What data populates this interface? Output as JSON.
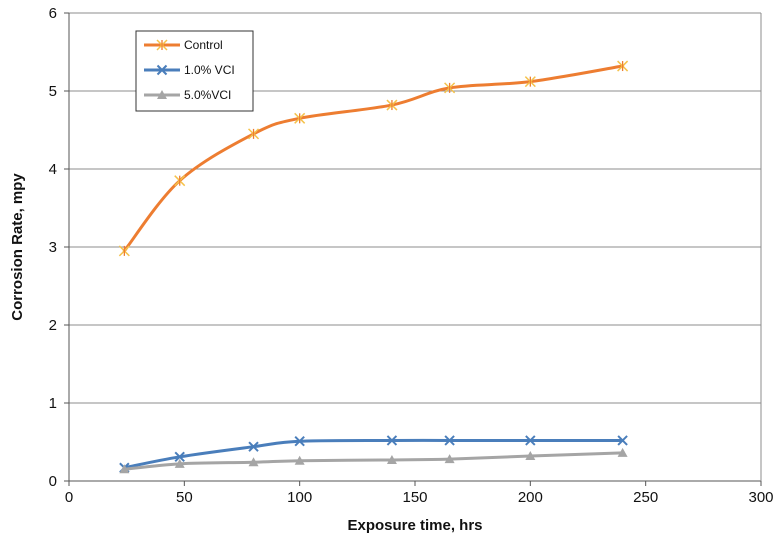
{
  "chart_data": {
    "type": "line",
    "title": "",
    "xlabel": "Exposure time, hrs",
    "ylabel": "Corrosion Rate, mpy",
    "xlim": [
      0,
      300
    ],
    "ylim": [
      0,
      6
    ],
    "x_ticks": [
      0,
      50,
      100,
      150,
      200,
      250,
      300
    ],
    "y_ticks": [
      0,
      1,
      2,
      3,
      4,
      5,
      6
    ],
    "grid": "horizontal",
    "legend_position": "top-left",
    "series": [
      {
        "name": "Control",
        "color": "#ED7D31",
        "marker": "star",
        "x": [
          24,
          48,
          80,
          100,
          140,
          165,
          200,
          240
        ],
        "y": [
          2.95,
          3.85,
          4.45,
          4.65,
          4.82,
          5.04,
          5.12,
          5.32
        ]
      },
      {
        "name": "1.0% VCI",
        "color": "#4A7EBB",
        "marker": "x",
        "x": [
          24,
          48,
          80,
          100,
          140,
          165,
          200,
          240
        ],
        "y": [
          0.17,
          0.31,
          0.44,
          0.51,
          0.52,
          0.52,
          0.52,
          0.52
        ]
      },
      {
        "name": "5.0%VCI",
        "color": "#A5A5A5",
        "marker": "triangle",
        "x": [
          24,
          48,
          80,
          100,
          140,
          165,
          200,
          240
        ],
        "y": [
          0.15,
          0.22,
          0.24,
          0.26,
          0.27,
          0.28,
          0.32,
          0.36
        ]
      }
    ]
  }
}
